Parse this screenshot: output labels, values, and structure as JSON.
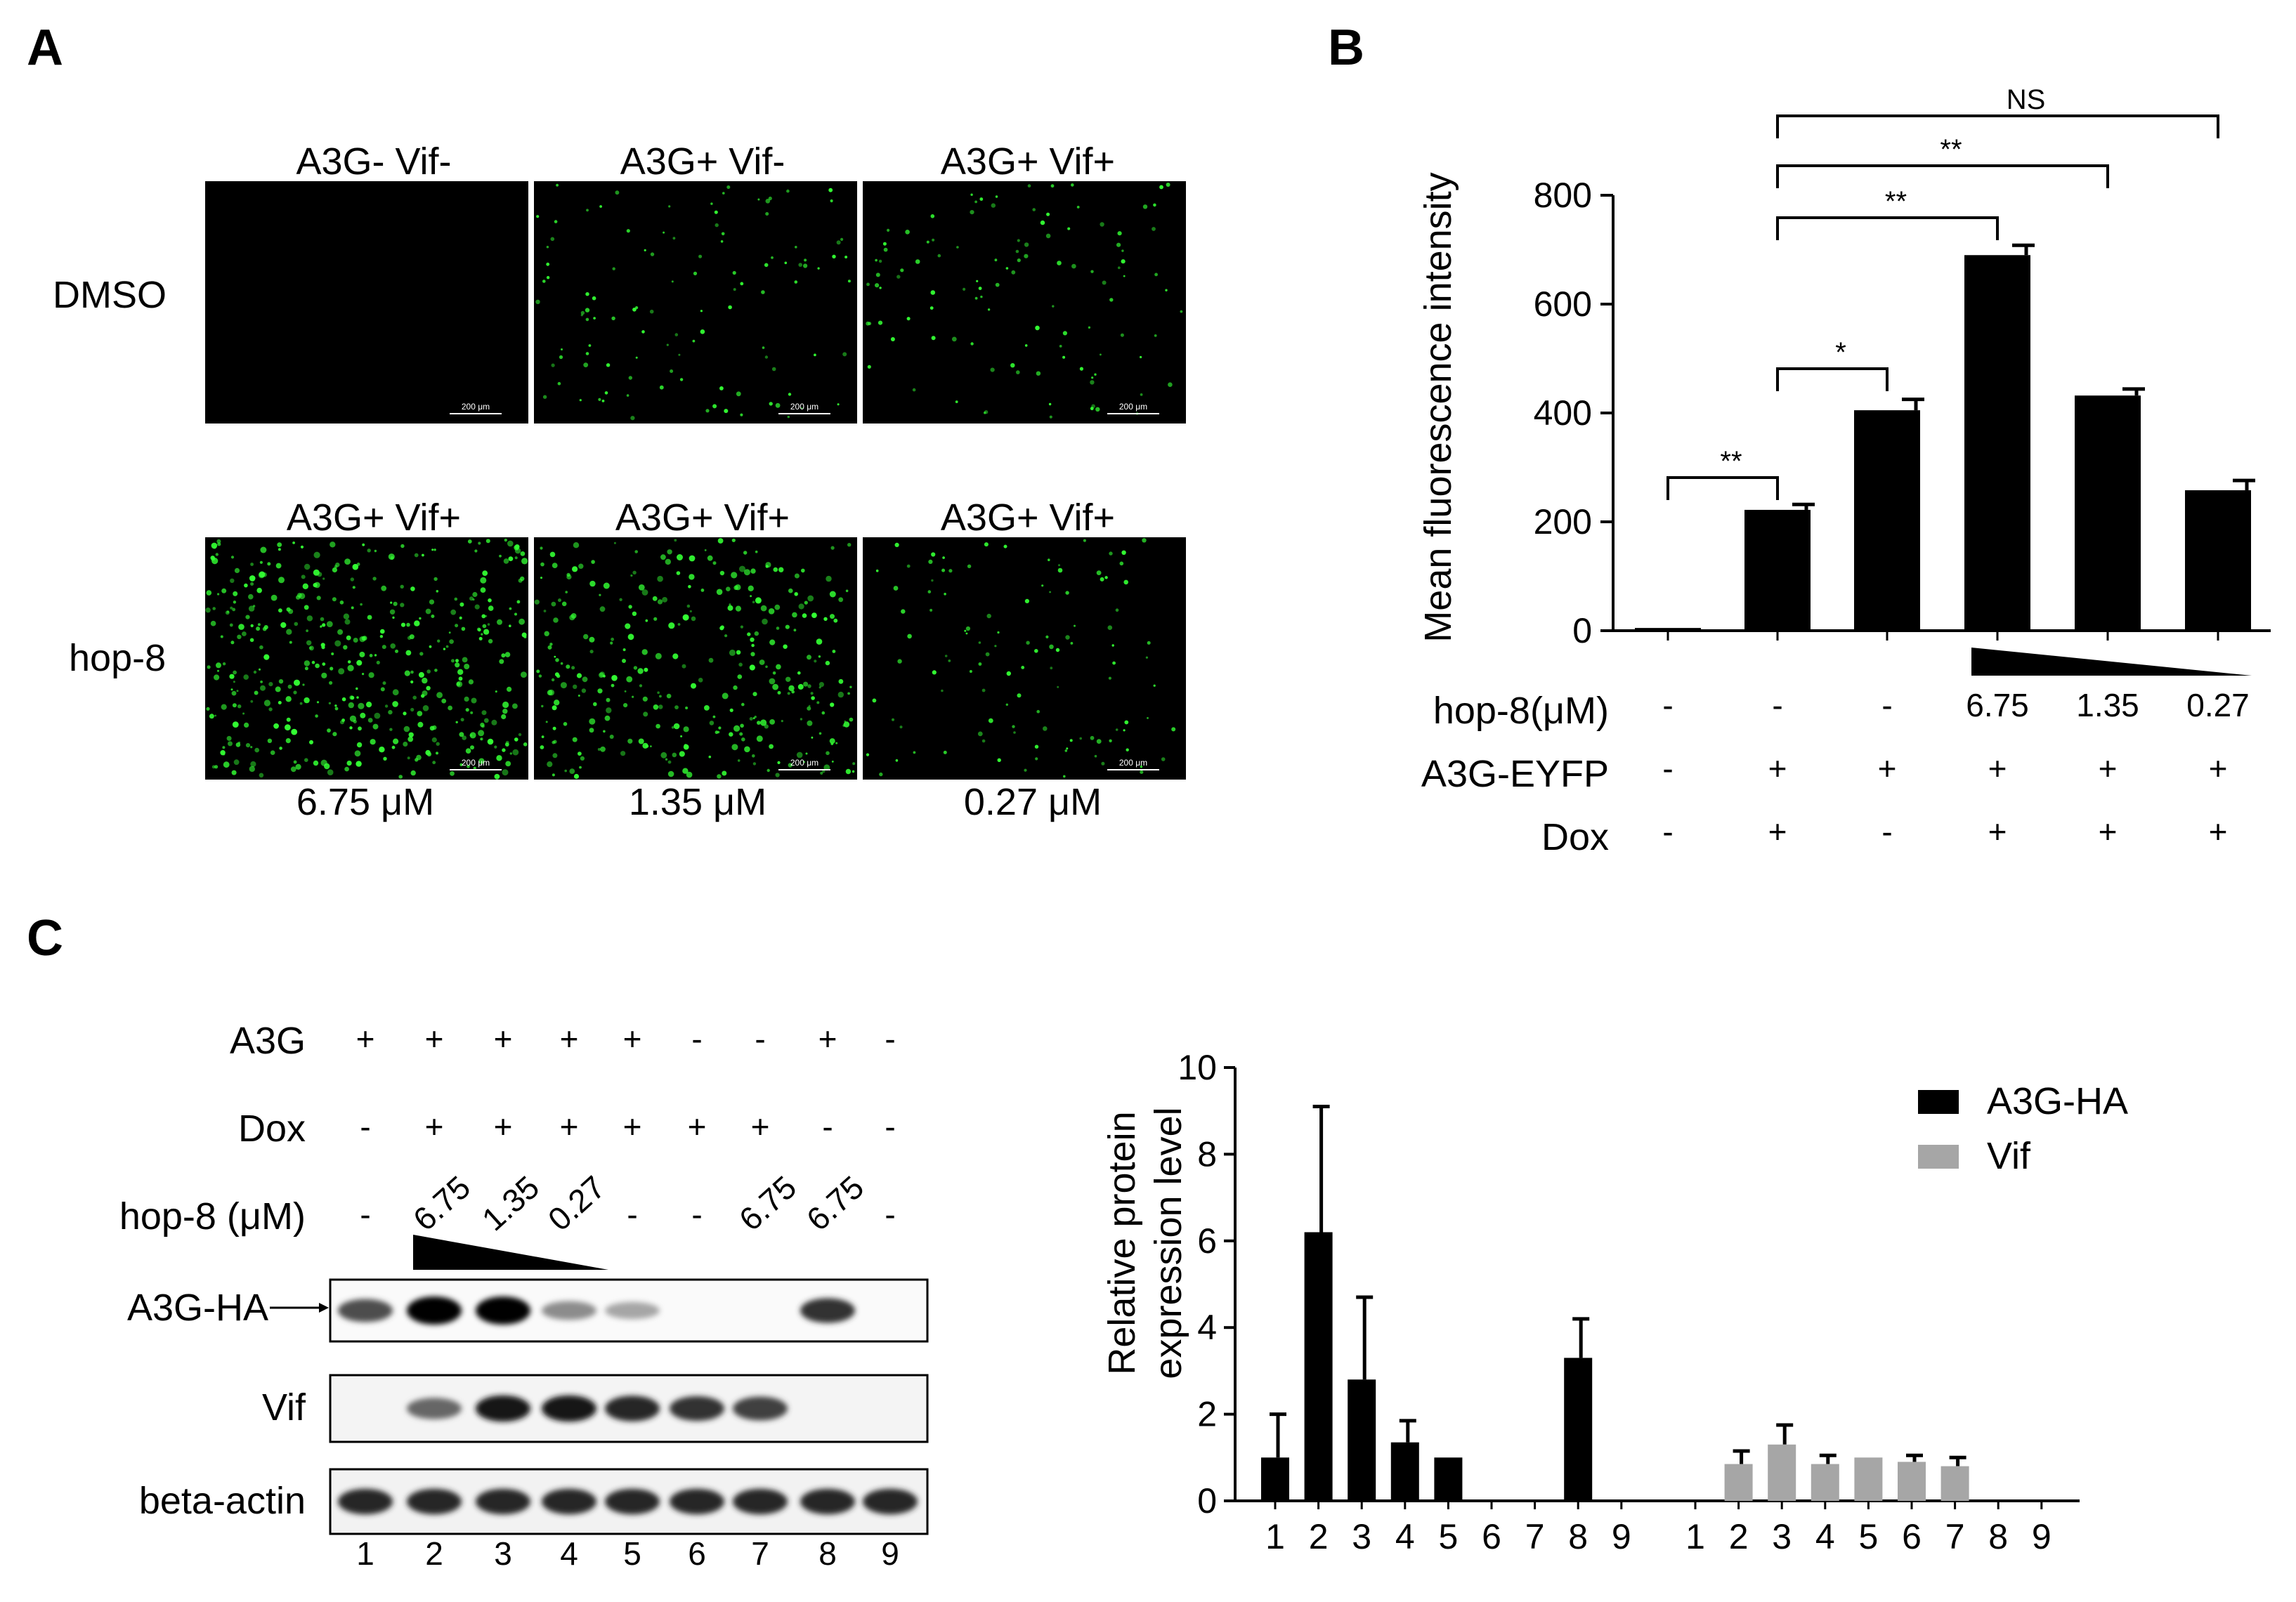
{
  "panelA": {
    "label": "A",
    "row_labels": [
      "DMSO",
      "hop-8"
    ],
    "top_titles": [
      "A3G- Vif-",
      "A3G+ Vif-",
      "A3G+ Vif+"
    ],
    "bottom_titles": [
      "A3G+ Vif+",
      "A3G+ Vif+",
      "A3G+ Vif+"
    ],
    "concentrations": [
      "6.75 μM",
      "1.35 μM",
      "0.27 μM"
    ],
    "scale_bar": "200 μm",
    "signal_density": [
      0,
      1,
      1,
      4,
      3,
      1
    ],
    "signal_color": "#33ff33"
  },
  "panelB": {
    "label": "B",
    "row_labels": [
      "hop-8(μM)",
      "A3G-EYFP",
      "Dox"
    ],
    "conditions": [
      [
        "-",
        "-",
        "-",
        "6.75",
        "1.35",
        "0.27"
      ],
      [
        "-",
        "+",
        "+",
        "+",
        "+",
        "+"
      ],
      [
        "-",
        "+",
        "-",
        "+",
        "+",
        "+"
      ]
    ],
    "significance": [
      "**",
      "*",
      "**",
      "**",
      "NS"
    ]
  },
  "panelC": {
    "label": "C",
    "row_labels": [
      "A3G",
      "Dox",
      "hop-8 (μM)"
    ],
    "a3g": [
      "+",
      "+",
      "+",
      "+",
      "+",
      "-",
      "-",
      "+",
      "-"
    ],
    "dox": [
      "-",
      "+",
      "+",
      "+",
      "+",
      "+",
      "+",
      "-",
      "-"
    ],
    "hop8": [
      "-",
      "6.75",
      "1.35",
      "0.27",
      "-",
      "-",
      "6.75",
      "6.75",
      "-"
    ],
    "blot_labels": [
      "A3G-HA",
      "Vif",
      "beta-actin"
    ],
    "lanes": [
      "1",
      "2",
      "3",
      "4",
      "5",
      "6",
      "7",
      "8",
      "9"
    ],
    "band_intensity": {
      "a3g_ha": [
        0.7,
        1.0,
        1.0,
        0.45,
        0.35,
        0,
        0,
        0.8,
        0
      ],
      "vif": [
        0,
        0.6,
        0.9,
        0.9,
        0.85,
        0.8,
        0.75,
        0,
        0
      ],
      "actin": [
        0.85,
        0.85,
        0.85,
        0.85,
        0.85,
        0.85,
        0.85,
        0.85,
        0.85
      ]
    }
  },
  "chart_data": [
    {
      "type": "bar",
      "categories": [
        "",
        "",
        "",
        "",
        "",
        ""
      ],
      "values": [
        5,
        222,
        405,
        690,
        432,
        258
      ],
      "errors": [
        0,
        10,
        20,
        18,
        12,
        18
      ],
      "ylabel": "Mean fluorescence intensity",
      "ylim": [
        0,
        800
      ],
      "yticks": [
        "0",
        "200",
        "400",
        "600",
        "800"
      ],
      "bar_color": "#000000"
    },
    {
      "type": "bar",
      "categories": [
        "1",
        "2",
        "3",
        "4",
        "5",
        "6",
        "7",
        "8",
        "9"
      ],
      "ylabel": "Relative protein expression level",
      "ylim": [
        0,
        10
      ],
      "yticks": [
        "0",
        "2",
        "4",
        "6",
        "8",
        "10"
      ],
      "legend": "top-right",
      "series": [
        {
          "name": "A3G-HA",
          "color": "#000000",
          "values": [
            1.0,
            6.2,
            2.8,
            1.35,
            1.0,
            0,
            0,
            3.3,
            0
          ],
          "errors": [
            1.0,
            2.9,
            1.9,
            0.5,
            0,
            0,
            0,
            0.9,
            0
          ]
        },
        {
          "name": "Vif",
          "color": "#a6a6a6",
          "values": [
            0,
            0.85,
            1.3,
            0.85,
            1.0,
            0.9,
            0.8,
            0,
            0
          ],
          "errors": [
            0,
            0.3,
            0.45,
            0.2,
            0,
            0.15,
            0.2,
            0,
            0
          ]
        }
      ]
    }
  ]
}
